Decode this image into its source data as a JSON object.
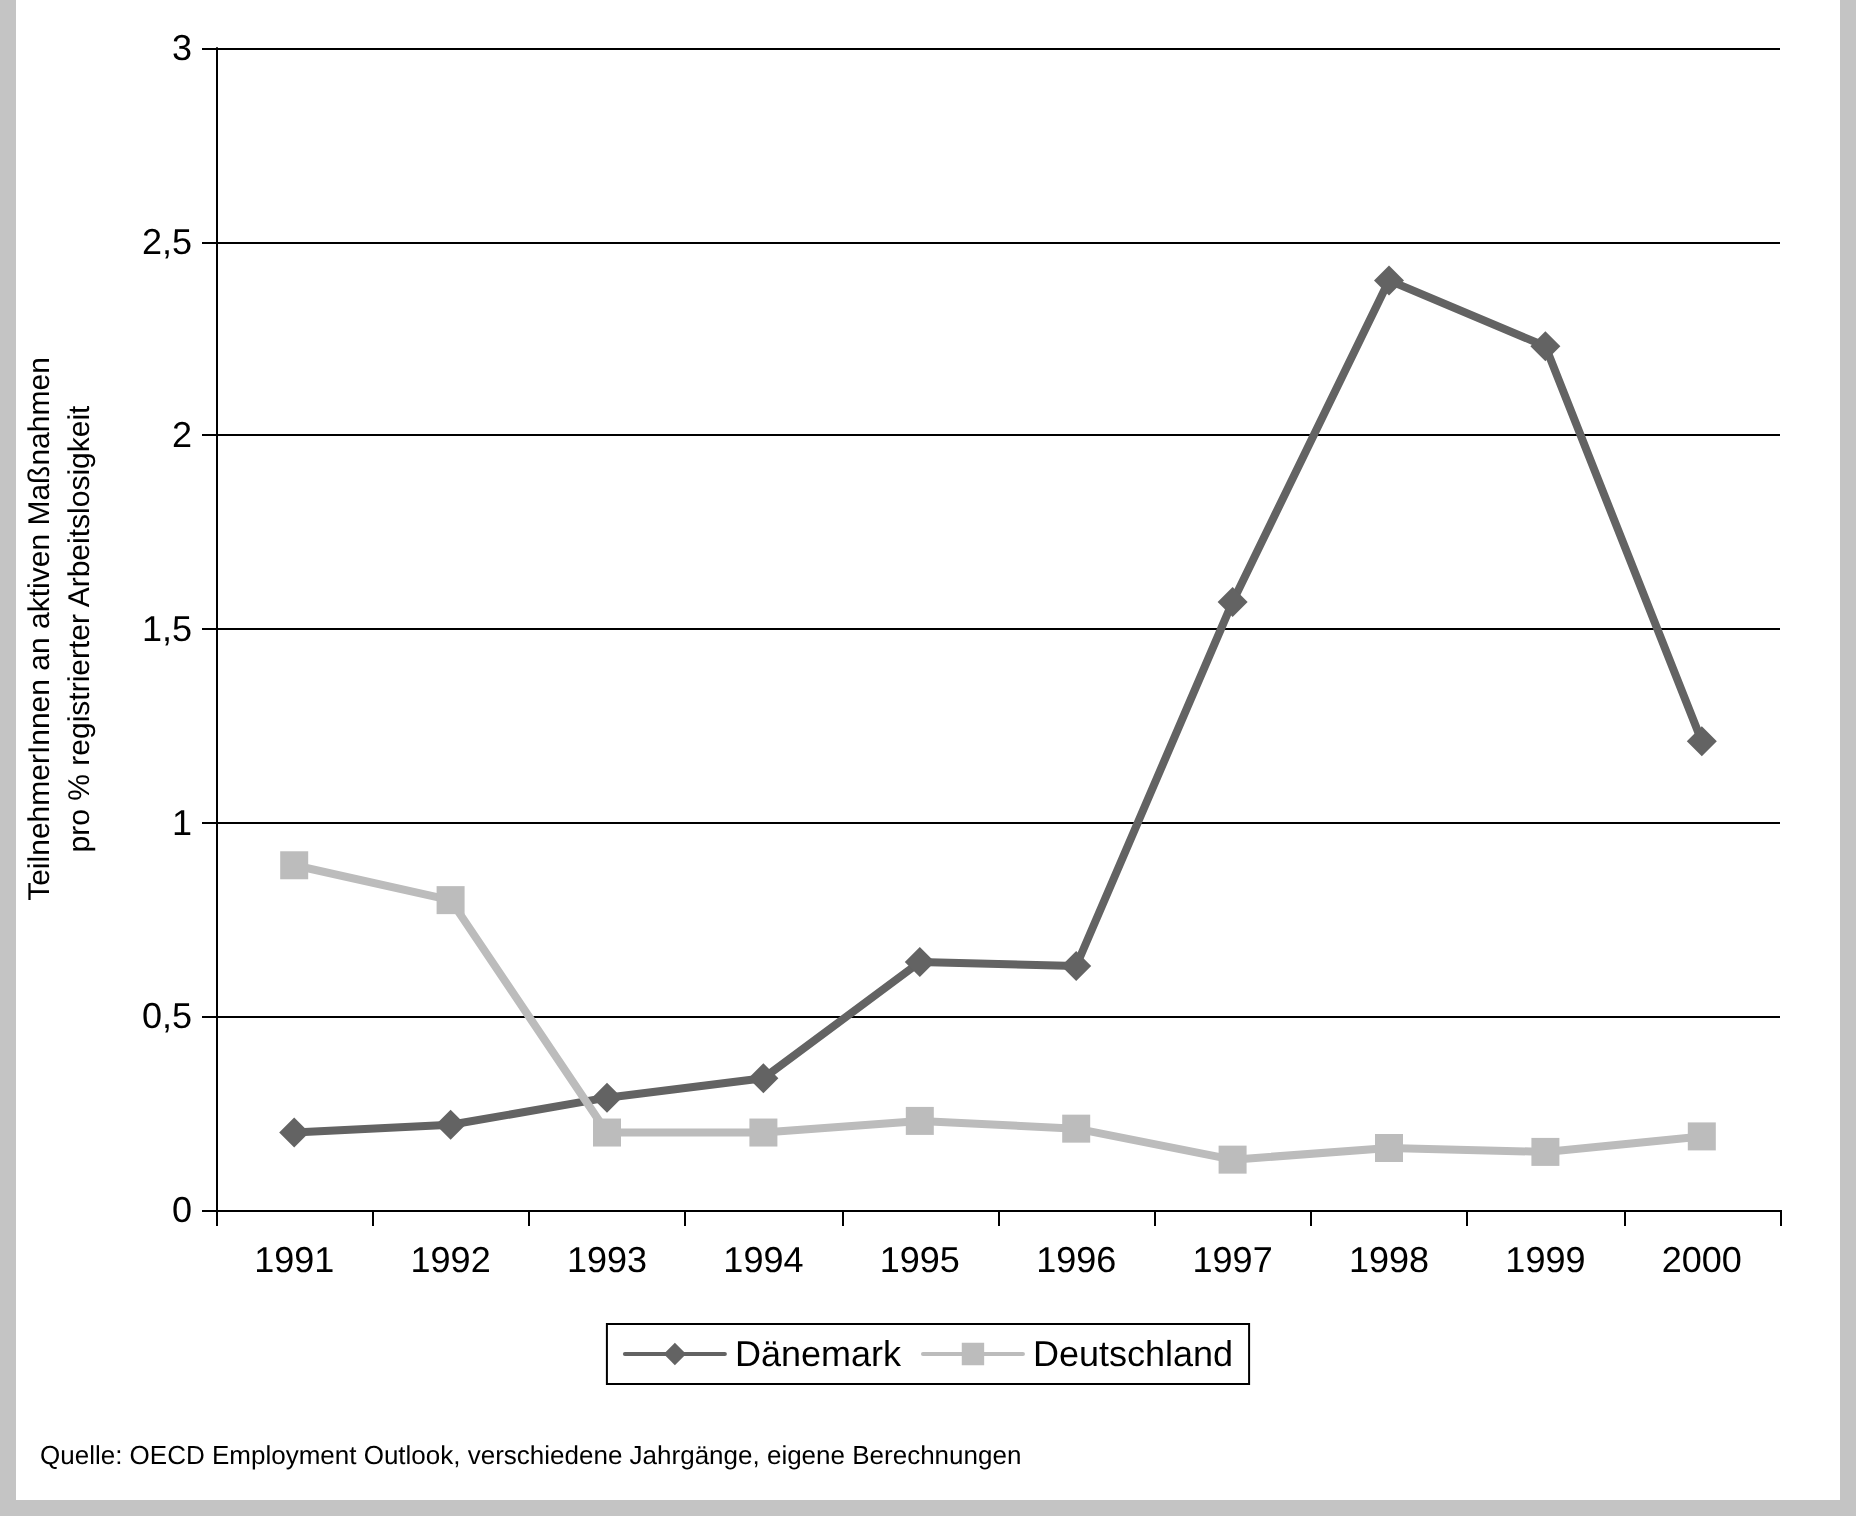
{
  "chart_data": {
    "type": "line",
    "ylabel": "TeilnehmerInnen an aktiven Maßnahmen\npro % registrierter Arbeitslosigkeit",
    "categories": [
      "1991",
      "1992",
      "1993",
      "1994",
      "1995",
      "1996",
      "1997",
      "1998",
      "1999",
      "2000"
    ],
    "series": [
      {
        "name": "Dänemark",
        "color": "#636363",
        "marker": "diamond",
        "values": [
          0.2,
          0.22,
          0.29,
          0.34,
          0.64,
          0.63,
          1.57,
          2.4,
          2.23,
          1.21
        ]
      },
      {
        "name": "Deutschland",
        "color": "#bcbcbc",
        "marker": "square",
        "values": [
          0.89,
          0.8,
          0.2,
          0.2,
          0.23,
          0.21,
          0.13,
          0.16,
          0.15,
          0.19
        ]
      }
    ],
    "ylim": [
      0,
      3
    ],
    "yticks": [
      0,
      {
        "value": 0.5,
        "label": "0,5"
      },
      1,
      {
        "value": 1.5,
        "label": "1,5"
      },
      2,
      {
        "value": 2.5,
        "label": "2,5"
      },
      3
    ],
    "grid": "y",
    "legend": "bottom",
    "line_style": "solid",
    "annotations": [
      "Quelle: OECD Employment Outlook, verschiedene Jahrgänge, eigene Berechnungen"
    ]
  }
}
